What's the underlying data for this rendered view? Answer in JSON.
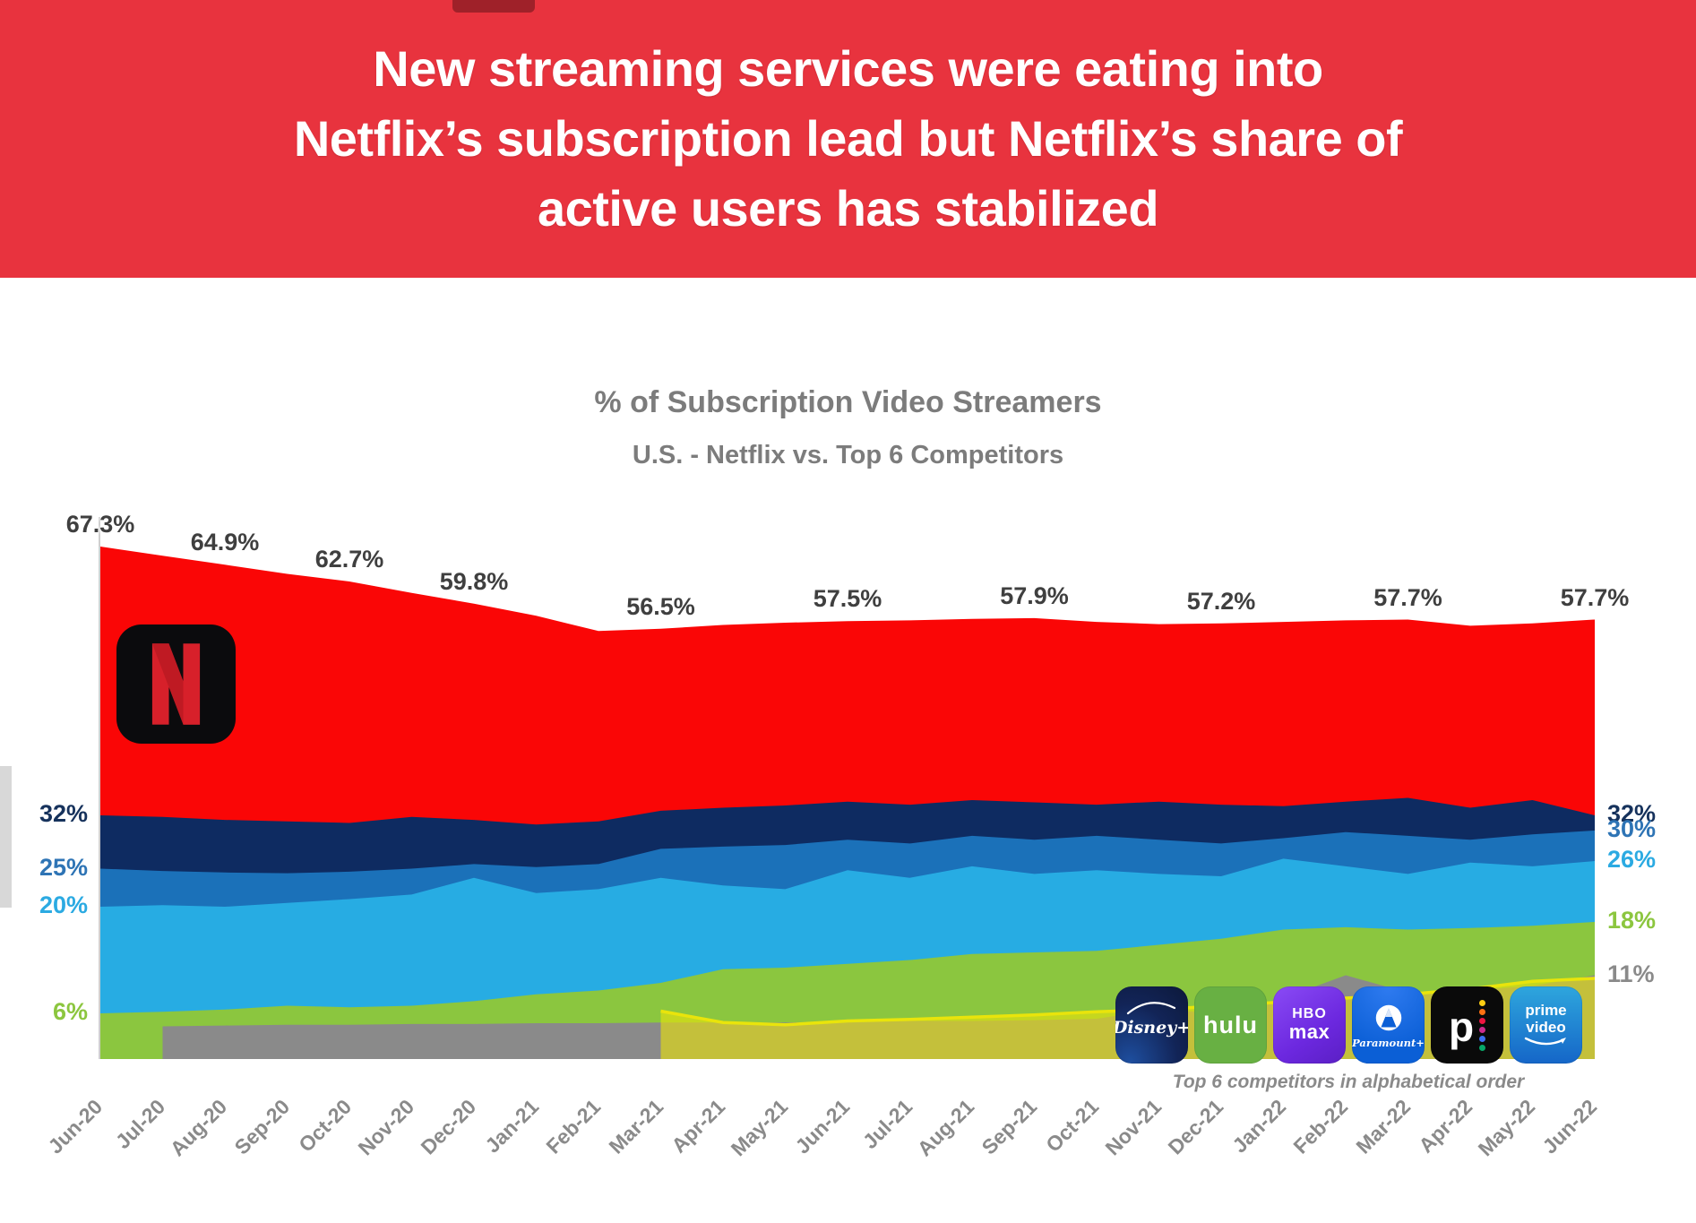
{
  "banner": {
    "bg_color": "#E8333E",
    "line1": "New streaming services were eating into",
    "line2": "Netflix’s subscription lead but Netflix’s share of",
    "line3": "active users has stabilized"
  },
  "chart": {
    "title": "% of Subscription Video Streamers",
    "subtitle": "U.S. - Netflix vs. Top 6 Competitors",
    "title_color": "#7C7C7C"
  },
  "chart_data": {
    "type": "area",
    "overlapping_areas": true,
    "grid": false,
    "ylim": [
      0,
      70
    ],
    "categories": [
      "Jun-20",
      "Jul-20",
      "Aug-20",
      "Sep-20",
      "Oct-20",
      "Nov-20",
      "Dec-20",
      "Jan-21",
      "Feb-21",
      "Mar-21",
      "Apr-21",
      "May-21",
      "Jun-21",
      "Jul-21",
      "Aug-21",
      "Sep-21",
      "Oct-21",
      "Nov-21",
      "Dec-21",
      "Jan-22",
      "Feb-22",
      "Mar-22",
      "Apr-22",
      "May-22",
      "Jun-22"
    ],
    "series": [
      {
        "name": "netflix",
        "color": "#FA0606",
        "values": [
          67.3,
          66.1,
          64.9,
          63.7,
          62.7,
          61.2,
          59.8,
          58.2,
          56.2,
          56.5,
          57.0,
          57.3,
          57.5,
          57.6,
          57.8,
          57.9,
          57.4,
          57.1,
          57.2,
          57.4,
          57.6,
          57.7,
          56.9,
          57.2,
          57.7
        ]
      },
      {
        "name": "competitor-navy",
        "color": "#0E2B61",
        "values": [
          32.0,
          31.8,
          31.4,
          31.2,
          31.0,
          31.8,
          31.4,
          30.8,
          31.2,
          32.6,
          33.0,
          33.3,
          33.8,
          33.4,
          34.0,
          33.7,
          33.4,
          33.8,
          33.4,
          33.2,
          33.8,
          34.3,
          33.0,
          34.0,
          32.0
        ]
      },
      {
        "name": "competitor-blue",
        "color": "#1B71B9",
        "values": [
          25.0,
          24.7,
          24.5,
          24.4,
          24.6,
          25.0,
          25.6,
          25.2,
          25.6,
          27.6,
          27.9,
          28.1,
          28.8,
          28.3,
          29.3,
          28.8,
          29.3,
          28.8,
          28.3,
          29.0,
          29.8,
          29.3,
          28.8,
          29.5,
          30.0
        ]
      },
      {
        "name": "competitor-cyan",
        "color": "#27ACE3",
        "values": [
          20.0,
          20.2,
          20.0,
          20.5,
          21.0,
          21.6,
          23.8,
          21.8,
          22.3,
          23.8,
          22.8,
          22.3,
          24.8,
          23.8,
          25.3,
          24.3,
          24.8,
          24.3,
          24.0,
          26.3,
          25.3,
          24.3,
          25.8,
          25.3,
          26.0
        ]
      },
      {
        "name": "competitor-green",
        "color": "#8BC63F",
        "values": [
          6.0,
          6.2,
          6.5,
          7.0,
          6.8,
          7.0,
          7.6,
          8.5,
          9.0,
          10.0,
          11.8,
          12.0,
          12.5,
          13.0,
          13.8,
          14.0,
          14.2,
          15.0,
          15.8,
          17.0,
          17.3,
          17.0,
          17.2,
          17.5,
          18.0
        ]
      },
      {
        "name": "competitor-gray",
        "color": "#8A8A8A",
        "values": [
          null,
          4.3,
          4.4,
          4.5,
          4.5,
          4.6,
          4.6,
          4.7,
          4.7,
          4.8,
          4.8,
          4.8,
          4.9,
          5.0,
          5.0,
          5.1,
          5.3,
          6.5,
          6.0,
          8.0,
          11.0,
          8.7,
          9.0,
          9.6,
          11.0
        ]
      },
      {
        "name": "competitor-yellow",
        "color": "rgba(232,226,12,0.62)",
        "stroke": "#E9E40B",
        "stroke_width": 3.5,
        "values": [
          null,
          null,
          null,
          null,
          null,
          null,
          null,
          null,
          null,
          6.3,
          4.8,
          4.5,
          5.0,
          5.2,
          5.5,
          5.8,
          6.2,
          6.5,
          7.0,
          7.5,
          8.0,
          8.5,
          9.2,
          10.2,
          10.6
        ]
      }
    ],
    "netflix_point_labels": [
      {
        "index": 0,
        "text": "67.3%"
      },
      {
        "index": 2,
        "text": "64.9%"
      },
      {
        "index": 4,
        "text": "62.7%"
      },
      {
        "index": 6,
        "text": "59.8%"
      },
      {
        "index": 9,
        "text": "56.5%"
      },
      {
        "index": 12,
        "text": "57.5%"
      },
      {
        "index": 15,
        "text": "57.9%"
      },
      {
        "index": 18,
        "text": "57.2%"
      },
      {
        "index": 21,
        "text": "57.7%"
      },
      {
        "index": 24,
        "text": "57.7%"
      }
    ],
    "left_axis_labels": [
      {
        "text": "32%",
        "value": 32,
        "color": "#16325C"
      },
      {
        "text": "25%",
        "value": 25,
        "color": "#2E74B5"
      },
      {
        "text": "20%",
        "value": 20,
        "color": "#2BAAE2"
      },
      {
        "text": "6%",
        "value": 6,
        "color": "#8CC63F"
      }
    ],
    "right_axis_labels": [
      {
        "text": "32%",
        "value": 32,
        "color": "#16325C"
      },
      {
        "text": "30%",
        "value": 30,
        "color": "#2E74B5"
      },
      {
        "text": "26%",
        "value": 26,
        "color": "#2BAAE2"
      },
      {
        "text": "18%",
        "value": 18,
        "color": "#8CC63F"
      },
      {
        "text": "11%",
        "value": 11,
        "color": "#8A8A8A"
      }
    ]
  },
  "legend": {
    "caption": "Top 6 competitors in alphabetical order",
    "tiles": {
      "disney": {
        "text": "Disney+"
      },
      "hulu": {
        "text": "hulu"
      },
      "hbo": {
        "line1": "HBO",
        "line2": "max"
      },
      "paramount": {
        "text": "Paramount+"
      },
      "peacock": {
        "text": "p"
      },
      "prime": {
        "line1": "prime",
        "line2": "video"
      }
    }
  }
}
